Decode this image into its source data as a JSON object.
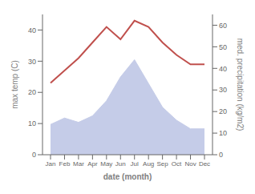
{
  "chart_data": {
    "type": "line",
    "xlabel": "date (month)",
    "ylabel": "max temp (C)",
    "y2label": "med. precipitation (kg/m2)",
    "categories": [
      "Jan",
      "Feb",
      "Mar",
      "Apr",
      "May",
      "Jun",
      "Jul",
      "Aug",
      "Sep",
      "Oct",
      "Nov",
      "Dec"
    ],
    "series": [
      {
        "type": "area",
        "axis": "y2",
        "color": "#c5cce8",
        "values": [
          14,
          17,
          15,
          18,
          25,
          36,
          44,
          33,
          22,
          16,
          12,
          12
        ]
      },
      {
        "type": "line",
        "color": "#c0504d",
        "values": [
          23,
          27,
          31,
          36,
          41,
          37,
          43,
          41,
          36,
          32,
          29,
          29
        ]
      }
    ],
    "ylim": [
      0,
      45
    ],
    "yticks": [
      0,
      10,
      20,
      30,
      40
    ],
    "y2lim": [
      0,
      65
    ],
    "y2ticks": [
      0,
      10,
      20,
      30,
      40,
      50,
      60
    ],
    "grid": false
  }
}
